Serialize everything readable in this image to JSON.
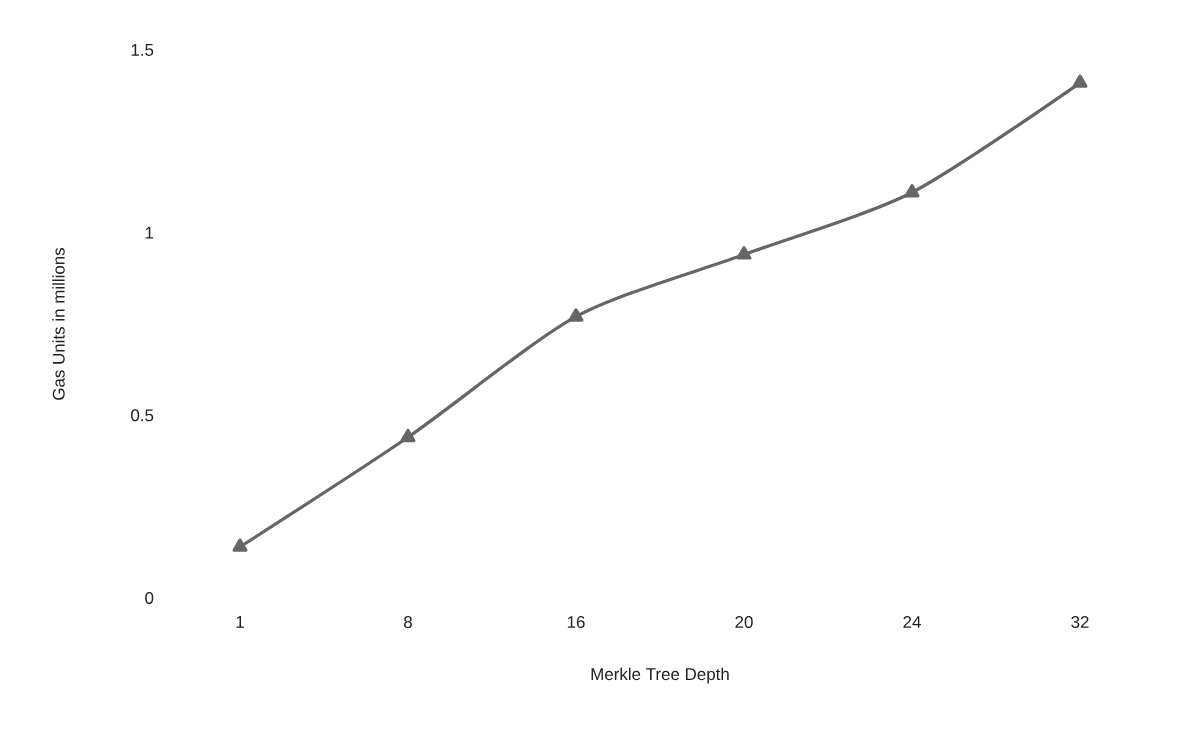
{
  "chart_data": {
    "type": "line",
    "xlabel": "Merkle Tree Depth",
    "ylabel": "Gas Units in millions",
    "categories": [
      "1",
      "8",
      "16",
      "20",
      "24",
      "32"
    ],
    "series": [
      {
        "color": "#666666",
        "values": [
          0.14,
          0.44,
          0.77,
          0.94,
          1.11,
          1.41
        ]
      }
    ],
    "ylim": [
      0,
      1.5
    ],
    "yticks": [
      0,
      0.5,
      1,
      1.5
    ],
    "grid": false,
    "marker": "triangle",
    "line_style": "solid"
  }
}
